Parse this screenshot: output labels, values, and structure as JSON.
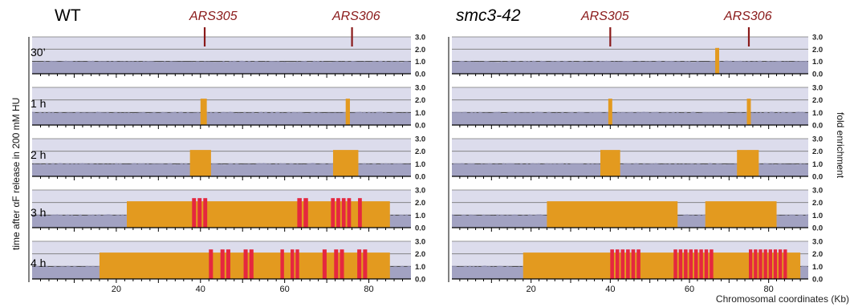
{
  "figure": {
    "left_header": "WT",
    "right_header": "smc3-42",
    "ars_labels": [
      "ARS305",
      "ARS306"
    ],
    "y_axis_label": "time after αF release in 200 mM HU",
    "right_axis_label": "fold enrichment",
    "x_axis_caption": "Chromosomal coordinates (Kb)",
    "timepoints": [
      "30’",
      "1 h",
      "2 h",
      "3 h",
      "4 h"
    ],
    "colors": {
      "panel_bg": "#dcdcec",
      "signal": "#9898bb",
      "enriched": "#e39a1f",
      "highly_enriched": "#e5273f",
      "ars_marker": "#8a1a1a"
    }
  },
  "chart_data": [
    {
      "type": "area",
      "name": "WT",
      "xlabel": "",
      "ylabel": "",
      "x_tick_labels": [
        "20",
        "40",
        "60",
        "80"
      ],
      "y_tick_labels": [
        "0.0",
        "1.0",
        "2.0",
        "3.0"
      ],
      "xlim": [
        0,
        90
      ],
      "ylim": [
        0,
        3
      ],
      "ars_positions": [
        41,
        76
      ],
      "rows": [
        {
          "label": "30’",
          "baseline": 1.0,
          "enriched_regions": [],
          "highly_enriched_regions": []
        },
        {
          "label": "1 h",
          "baseline": 1.0,
          "enriched_regions": [
            [
              40,
              41.5
            ],
            [
              74.5,
              75.5
            ]
          ],
          "highly_enriched_regions": []
        },
        {
          "label": "2 h",
          "baseline": 1.0,
          "enriched_regions": [
            [
              37.5,
              42.5
            ],
            [
              71.5,
              77.5
            ]
          ],
          "highly_enriched_regions": []
        },
        {
          "label": "3 h",
          "baseline": 1.0,
          "enriched_regions": [
            [
              22.5,
              85
            ]
          ],
          "highly_enriched_regions": [
            [
              38,
              42
            ],
            [
              63,
              66
            ],
            [
              71,
              80
            ]
          ]
        },
        {
          "label": "4 h",
          "baseline": 1.0,
          "enriched_regions": [
            [
              16,
              85
            ]
          ],
          "highly_enriched_regions": [
            [
              42,
              53
            ],
            [
              59,
              65
            ],
            [
              69,
              80
            ]
          ]
        }
      ]
    },
    {
      "type": "area",
      "name": "smc3-42",
      "xlabel": "",
      "ylabel": "fold enrichment",
      "x_tick_labels": [
        "20",
        "40",
        "60",
        "80"
      ],
      "y_tick_labels": [
        "0.0",
        "1.0",
        "2.0",
        "3.0"
      ],
      "xlim": [
        0,
        90
      ],
      "ylim": [
        0,
        3
      ],
      "ars_positions": [
        40,
        75
      ],
      "rows": [
        {
          "label": "30’",
          "baseline": 1.0,
          "enriched_regions": [
            [
              66.5,
              67.5
            ]
          ],
          "highly_enriched_regions": []
        },
        {
          "label": "1 h",
          "baseline": 1.0,
          "enriched_regions": [
            [
              39.5,
              40.5
            ],
            [
              74.5,
              75.5
            ]
          ],
          "highly_enriched_regions": []
        },
        {
          "label": "2 h",
          "baseline": 1.0,
          "enriched_regions": [
            [
              37.5,
              42.5
            ],
            [
              72,
              77.5
            ]
          ],
          "highly_enriched_regions": []
        },
        {
          "label": "3 h",
          "baseline": 1.0,
          "enriched_regions": [
            [
              24,
              57
            ],
            [
              64,
              82
            ]
          ],
          "highly_enriched_regions": []
        },
        {
          "label": "4 h",
          "baseline": 1.0,
          "enriched_regions": [
            [
              18,
              88
            ]
          ],
          "highly_enriched_regions": [
            [
              40,
              48
            ],
            [
              56,
              69
            ],
            [
              75,
              85
            ]
          ]
        }
      ]
    }
  ]
}
